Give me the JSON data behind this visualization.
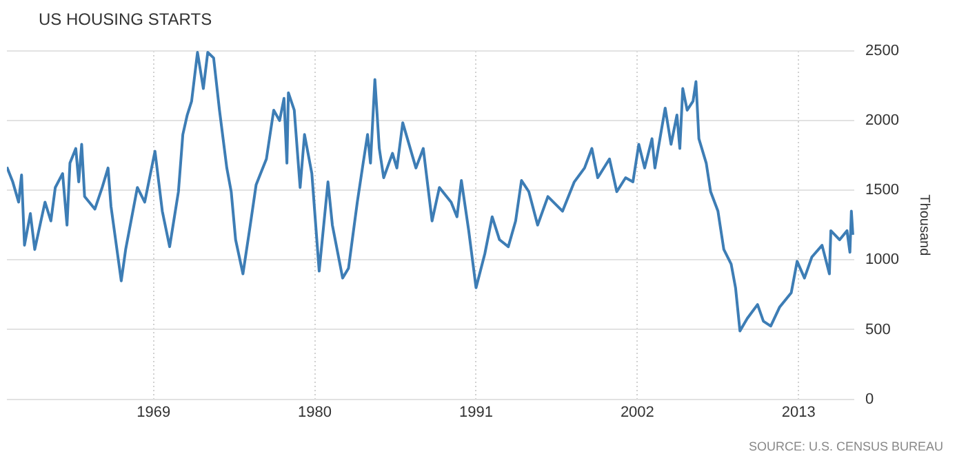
{
  "chart_data": {
    "type": "line",
    "title": "US HOUSING STARTS",
    "ylabel": "Thousand",
    "annotations": [
      "SOURCE: U.S. CENSUS BUREAU"
    ],
    "x": [
      1959.0,
      1959.4,
      1959.8,
      1960.0,
      1960.2,
      1960.6,
      1960.9,
      1961.6,
      1962.0,
      1962.3,
      1962.8,
      1963.1,
      1963.3,
      1963.7,
      1963.9,
      1964.1,
      1964.3,
      1965.0,
      1965.5,
      1965.9,
      1966.1,
      1966.8,
      1967.1,
      1967.9,
      1968.4,
      1969.1,
      1969.6,
      1970.1,
      1970.7,
      1971.0,
      1971.3,
      1971.6,
      1972.0,
      1972.4,
      1972.7,
      1973.1,
      1973.5,
      1974.0,
      1974.3,
      1974.6,
      1975.1,
      1975.6,
      1976.0,
      1976.7,
      1977.2,
      1977.6,
      1977.9,
      1978.1,
      1978.2,
      1978.6,
      1979.0,
      1979.3,
      1979.8,
      1980.3,
      1980.9,
      1981.2,
      1981.9,
      1982.3,
      1982.9,
      1983.3,
      1983.6,
      1983.8,
      1984.1,
      1984.4,
      1984.7,
      1985.3,
      1985.6,
      1986.0,
      1986.9,
      1987.4,
      1988.0,
      1988.5,
      1989.3,
      1989.7,
      1990.0,
      1990.5,
      1991.0,
      1991.6,
      1992.1,
      1992.6,
      1993.2,
      1993.7,
      1994.1,
      1994.6,
      1995.2,
      1995.9,
      1996.9,
      1997.7,
      1998.4,
      1998.9,
      1999.3,
      2000.1,
      2000.6,
      2001.2,
      2001.7,
      2002.1,
      2002.5,
      2003.0,
      2003.2,
      2003.9,
      2004.3,
      2004.7,
      2004.9,
      2005.1,
      2005.4,
      2005.8,
      2006.0,
      2006.2,
      2006.7,
      2007.0,
      2007.5,
      2007.9,
      2008.4,
      2008.7,
      2009.0,
      2009.5,
      2010.2,
      2010.6,
      2011.1,
      2011.7,
      2012.5,
      2012.9,
      2013.4,
      2013.9,
      2014.6,
      2015.1,
      2015.2,
      2015.8,
      2016.3,
      2016.5,
      2016.6,
      2016.7
    ],
    "series": [
      {
        "color": "#3d7db5",
        "values": [
          1667,
          1560,
          1415,
          1610,
          1106,
          1333,
          1075,
          1415,
          1280,
          1520,
          1620,
          1250,
          1695,
          1800,
          1560,
          1830,
          1455,
          1365,
          1520,
          1660,
          1385,
          850,
          1075,
          1520,
          1415,
          1780,
          1350,
          1095,
          1490,
          1900,
          2040,
          2140,
          2490,
          2230,
          2490,
          2450,
          2075,
          1660,
          1490,
          1145,
          900,
          1250,
          1540,
          1725,
          2075,
          2000,
          2160,
          1695,
          2200,
          2075,
          1520,
          1900,
          1620,
          920,
          1560,
          1250,
          870,
          940,
          1415,
          1695,
          1900,
          1695,
          2295,
          1800,
          1590,
          1765,
          1660,
          1985,
          1660,
          1800,
          1280,
          1520,
          1415,
          1310,
          1570,
          1210,
          800,
          1045,
          1310,
          1145,
          1095,
          1280,
          1570,
          1490,
          1250,
          1455,
          1350,
          1560,
          1660,
          1800,
          1590,
          1725,
          1490,
          1590,
          1560,
          1830,
          1660,
          1870,
          1660,
          2090,
          1830,
          2040,
          1800,
          2230,
          2075,
          2140,
          2280,
          1870,
          1695,
          1490,
          1350,
          1075,
          970,
          800,
          490,
          580,
          680,
          560,
          525,
          660,
          765,
          990,
          870,
          1020,
          1105,
          900,
          1210,
          1145,
          1210,
          1055,
          1350,
          1180
        ]
      }
    ],
    "xlim": [
      1959,
      2016.8
    ],
    "xticks": [
      1969,
      1980,
      1991,
      2002,
      2013
    ],
    "ylim": [
      0,
      2500
    ],
    "yticks": [
      0,
      500,
      1000,
      1500,
      2000,
      2500
    ],
    "grid": true,
    "legend": false
  }
}
